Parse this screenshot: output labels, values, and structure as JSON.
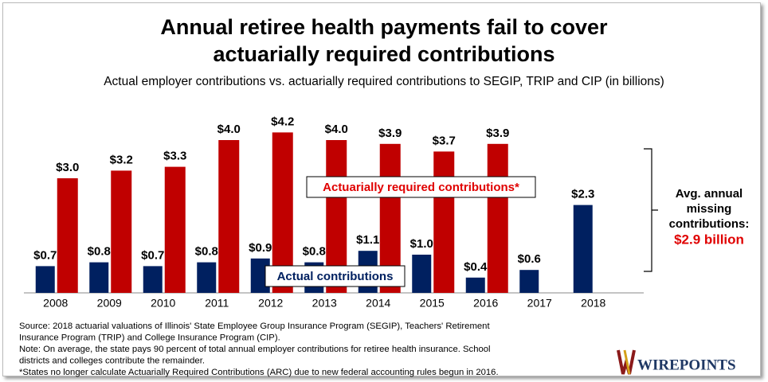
{
  "chart_data": {
    "type": "bar",
    "title": [
      "Annual retiree health payments fail to cover",
      "actuarially required contributions"
    ],
    "subtitle": "Actual employer contributions vs. actuarially required contributions to SEGIP, TRIP and CIP (in billions)",
    "categories": [
      "2008",
      "2009",
      "2010",
      "2011",
      "2012",
      "2013",
      "2014",
      "2015",
      "2016",
      "2017",
      "2018"
    ],
    "series": [
      {
        "name": "Actual contributions",
        "color": "#002060",
        "values": [
          0.7,
          0.8,
          0.7,
          0.8,
          0.9,
          0.8,
          1.1,
          1.0,
          0.4,
          0.6,
          2.3
        ],
        "value_labels": [
          "$0.7",
          "$0.8",
          "$0.7",
          "$0.8",
          "$0.9",
          "$0.8",
          "$1.1",
          "$1.0",
          "$0.4",
          "$0.6",
          "$2.3"
        ]
      },
      {
        "name": "Actuarially required contributions*",
        "color": "#c00000",
        "values": [
          3.0,
          3.2,
          3.3,
          4.0,
          4.2,
          4.0,
          3.9,
          3.7,
          3.9,
          null,
          null
        ],
        "value_labels": [
          "$3.0",
          "$3.2",
          "$3.3",
          "$4.0",
          "$4.2",
          "$4.0",
          "$3.9",
          "$3.7",
          "$3.9",
          null,
          null
        ]
      }
    ],
    "ylim": [
      0,
      4.5
    ],
    "annotation": {
      "lines": [
        "Avg. annual",
        "missing",
        "contributions:"
      ],
      "highlight": "$2.9 billion"
    },
    "notes": [
      "Source: 2018 actuarial valuations of Illinois' State Employee Group Insurance Program (SEGIP), Teachers' Retirement",
      "Insurance Program (TRIP) and College Insurance Program (CIP).",
      "Note: On average, the state pays 90 percent of total annual employer contributions for retiree health insurance. School",
      "districts and colleges contribute the remainder.",
      "*States no longer calculate Actuarially Required Contributions (ARC) due to new federal accounting rules begun in 2016."
    ],
    "logo": "WIREPOINTS"
  }
}
